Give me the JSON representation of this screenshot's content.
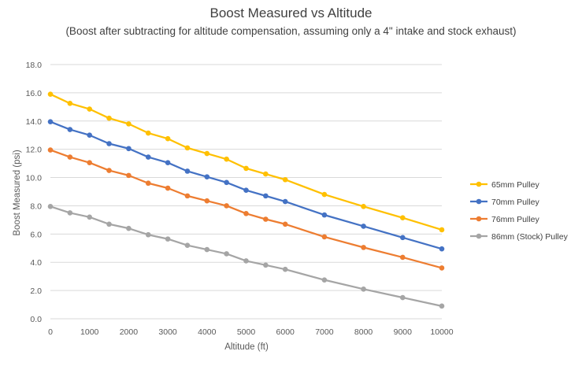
{
  "chart_data": {
    "type": "line",
    "title": "Boost Measured vs Altitude",
    "subtitle": "(Boost after subtracting for altitude compensation, assuming only a 4\" intake and stock exhaust)",
    "xlabel": "Altitude (ft)",
    "ylabel": "Boost Measured (psi)",
    "xlim": [
      0,
      10000
    ],
    "ylim": [
      0,
      18
    ],
    "x_ticks": [
      0,
      1000,
      2000,
      3000,
      4000,
      5000,
      6000,
      7000,
      8000,
      9000,
      10000
    ],
    "y_ticks": [
      "0.0",
      "2.0",
      "4.0",
      "6.0",
      "8.0",
      "10.0",
      "12.0",
      "14.0",
      "16.0",
      "18.0"
    ],
    "grid": "horizontal",
    "legend_position": "right",
    "x": [
      0,
      500,
      1000,
      1500,
      2000,
      2500,
      3000,
      3500,
      4000,
      4500,
      5000,
      5500,
      6000,
      7000,
      8000,
      9000,
      10000
    ],
    "series": [
      {
        "name": "65mm Pulley",
        "color": "#FFC000",
        "values": [
          15.9,
          15.25,
          14.85,
          14.2,
          13.8,
          13.15,
          12.75,
          12.1,
          11.7,
          11.3,
          10.65,
          10.25,
          9.85,
          8.8,
          7.95,
          7.15,
          6.3
        ]
      },
      {
        "name": "70mm Pulley",
        "color": "#4472C4",
        "values": [
          13.95,
          13.4,
          13.0,
          12.4,
          12.05,
          11.45,
          11.05,
          10.45,
          10.05,
          9.65,
          9.1,
          8.7,
          8.3,
          7.35,
          6.55,
          5.75,
          4.95
        ]
      },
      {
        "name": "76mm Pulley",
        "color": "#ED7D31",
        "values": [
          11.95,
          11.45,
          11.05,
          10.5,
          10.15,
          9.6,
          9.25,
          8.7,
          8.35,
          8.0,
          7.45,
          7.05,
          6.7,
          5.8,
          5.05,
          4.35,
          3.6
        ]
      },
      {
        "name": "86mm (Stock) Pulley",
        "color": "#A5A5A5",
        "values": [
          7.95,
          7.5,
          7.2,
          6.7,
          6.4,
          5.95,
          5.65,
          5.2,
          4.9,
          4.6,
          4.1,
          3.8,
          3.5,
          2.75,
          2.1,
          1.5,
          0.9
        ]
      }
    ]
  }
}
